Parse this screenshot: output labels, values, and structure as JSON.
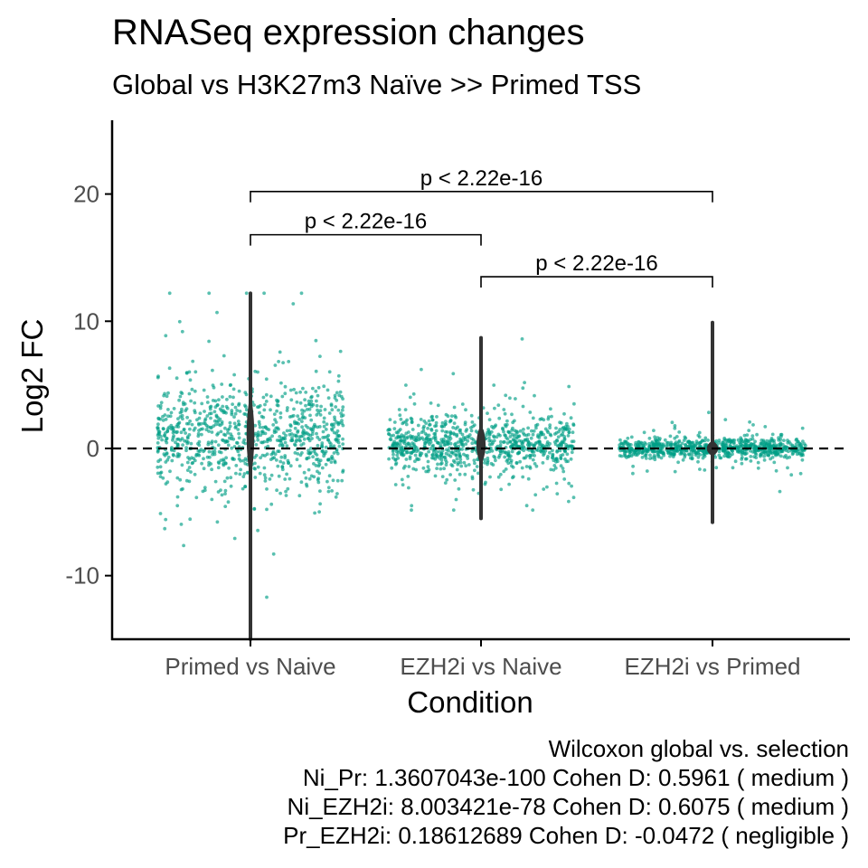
{
  "title": "RNASeq expression changes",
  "subtitle": "Global vs H3K27m3 Naïve >> Primed TSS",
  "caption": {
    "lines": [
      "Wilcoxon global vs. selection",
      "Ni_Pr: 1.3607043e-100 Cohen D: 0.5961 ( medium )",
      "Ni_EZH2i: 8.003421e-78 Cohen D: 0.6075 ( medium )",
      "Pr_EZH2i: 0.18612689 Cohen D: -0.0472 ( negligible )"
    ]
  },
  "colors": {
    "points": "#009e85",
    "violin": "#333333",
    "axis": "#000000",
    "tick_label": "#4d4d4d"
  },
  "chart_data": {
    "type": "scatter",
    "subtype": "jittered strip plot with violin outlines",
    "xlabel": "Condition",
    "ylabel": "Log2 FC",
    "categories": [
      "Primed vs Naive",
      "EZH2i vs Naive",
      "EZH2i vs Primed"
    ],
    "ylim": [
      -15,
      25.8
    ],
    "yticks": [
      -10,
      0,
      10,
      20
    ],
    "ytick_labels": [
      "-10",
      "0",
      "10",
      "20"
    ],
    "grid": false,
    "reference_line": {
      "y": 0,
      "style": "dashed"
    },
    "groups": [
      {
        "name": "Primed vs Naive",
        "n_points": 900,
        "median": 1.0,
        "spread": 2.8,
        "min": -15.0,
        "max": 12.2
      },
      {
        "name": "EZH2i vs Naive",
        "n_points": 850,
        "median": 0.3,
        "spread": 1.4,
        "min": -5.5,
        "max": 8.7
      },
      {
        "name": "EZH2i vs Primed",
        "n_points": 800,
        "median": 0.0,
        "spread": 0.5,
        "min": -5.8,
        "max": 9.9
      }
    ],
    "comparisons": [
      {
        "from": "Primed vs Naive",
        "to": "EZH2i vs Naive",
        "y": 16.8,
        "label": "p < 2.22e-16"
      },
      {
        "from": "Primed vs Naive",
        "to": "EZH2i vs Primed",
        "y": 20.2,
        "label": "p < 2.22e-16"
      },
      {
        "from": "EZH2i vs Naive",
        "to": "EZH2i vs Primed",
        "y": 13.5,
        "label": "p < 2.22e-16"
      }
    ]
  }
}
